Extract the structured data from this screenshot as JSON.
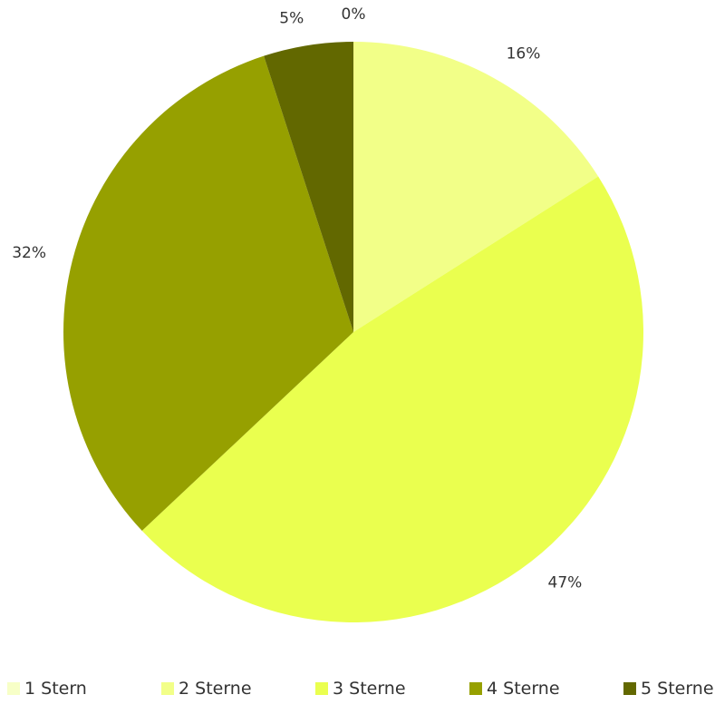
{
  "chart_data": {
    "type": "pie",
    "title": "",
    "categories": [
      "1 Stern",
      "2 Sterne",
      "3 Sterne",
      "4 Sterne",
      "5 Sterne"
    ],
    "values": [
      0,
      16,
      47,
      32,
      5
    ],
    "value_labels": [
      "0%",
      "16%",
      "47%",
      "32%",
      "5%"
    ],
    "colors": [
      "#f7ffc7",
      "#f2ff88",
      "#eaff4f",
      "#96a000",
      "#626800"
    ],
    "start_angle": "12 o'clock",
    "direction": "clockwise",
    "legend_position": "bottom"
  }
}
